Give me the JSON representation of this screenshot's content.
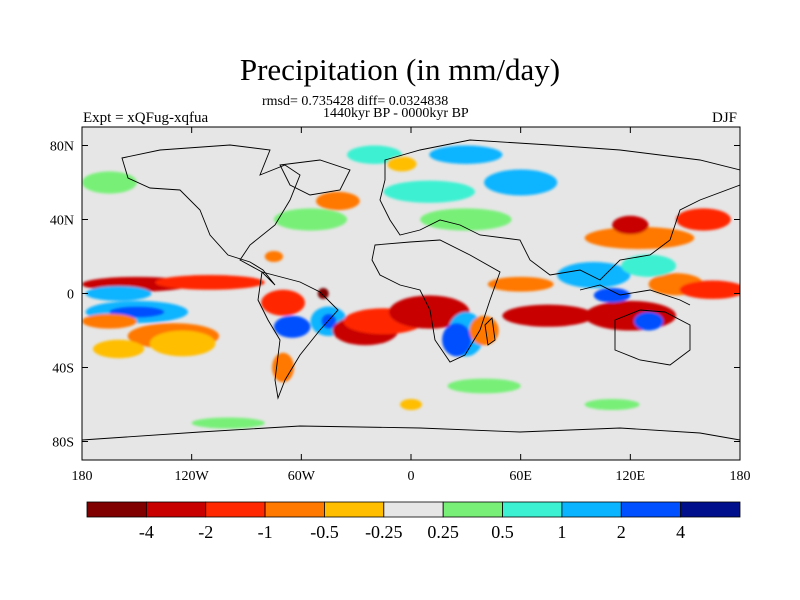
{
  "title": "Precipitation (in mm/day)",
  "stats_line": "rmsd= 0.735428 diff= 0.0324838",
  "period_line": "1440kyr BP - 0000kyr BP",
  "experiment_label": "Expt = xQFug-xqfua",
  "season_label": "DJF",
  "chart_data": {
    "type": "heatmap",
    "projection": "cylindrical-equidistant",
    "variable": "Precipitation difference",
    "units": "mm/day",
    "lon_range": [
      -180,
      180
    ],
    "lat_range": [
      -90,
      90
    ],
    "lon_ticks": [
      {
        "value": -180,
        "label": "180"
      },
      {
        "value": -120,
        "label": "120W"
      },
      {
        "value": -60,
        "label": "60W"
      },
      {
        "value": 0,
        "label": "0"
      },
      {
        "value": 60,
        "label": "60E"
      },
      {
        "value": 120,
        "label": "120E"
      },
      {
        "value": 180,
        "label": "180"
      }
    ],
    "lat_ticks": [
      {
        "value": 80,
        "label": "80N"
      },
      {
        "value": 40,
        "label": "40N"
      },
      {
        "value": 0,
        "label": "0"
      },
      {
        "value": -40,
        "label": "40S"
      },
      {
        "value": -80,
        "label": "80S"
      }
    ],
    "colorbar": {
      "colors": [
        "#800000",
        "#c80000",
        "#ff2800",
        "#ff7800",
        "#ffbe00",
        "#e6e6e6",
        "#78f078",
        "#3cf0d2",
        "#0ab4ff",
        "#0050ff",
        "#000f8c"
      ],
      "labels": [
        "-4",
        "-2",
        "-1",
        "-0.5",
        "-0.25",
        "0.25",
        "0.5",
        "1",
        "2",
        "4"
      ]
    },
    "anomaly_regions": [
      {
        "lon": -150,
        "lat": 5,
        "rx": 30,
        "ry": 4,
        "level": 1
      },
      {
        "lon": -110,
        "lat": 6,
        "rx": 30,
        "ry": 4,
        "level": 2
      },
      {
        "lon": -160,
        "lat": 0,
        "rx": 18,
        "ry": 4,
        "level": 8
      },
      {
        "lon": -150,
        "lat": -10,
        "rx": 28,
        "ry": 6,
        "level": 8
      },
      {
        "lon": -150,
        "lat": -10,
        "rx": 15,
        "ry": 3,
        "level": 9
      },
      {
        "lon": -165,
        "lat": -15,
        "rx": 15,
        "ry": 4,
        "level": 3
      },
      {
        "lon": -130,
        "lat": -23,
        "rx": 25,
        "ry": 7,
        "level": 3
      },
      {
        "lon": -125,
        "lat": -27,
        "rx": 18,
        "ry": 7,
        "level": 4
      },
      {
        "lon": -160,
        "lat": -30,
        "rx": 14,
        "ry": 5,
        "level": 4
      },
      {
        "lon": -70,
        "lat": -5,
        "rx": 12,
        "ry": 7,
        "level": 2
      },
      {
        "lon": -48,
        "lat": 0,
        "rx": 3,
        "ry": 3,
        "level": 0
      },
      {
        "lon": -45,
        "lat": -15,
        "rx": 10,
        "ry": 8,
        "level": 8
      },
      {
        "lon": -45,
        "lat": -15,
        "rx": 4,
        "ry": 4,
        "level": 9
      },
      {
        "lon": -65,
        "lat": -18,
        "rx": 10,
        "ry": 6,
        "level": 9
      },
      {
        "lon": -25,
        "lat": -20,
        "rx": 18,
        "ry": 8,
        "level": 1
      },
      {
        "lon": -15,
        "lat": -15,
        "rx": 22,
        "ry": 7,
        "level": 2
      },
      {
        "lon": 10,
        "lat": -10,
        "rx": 22,
        "ry": 9,
        "level": 1
      },
      {
        "lon": 30,
        "lat": -22,
        "rx": 10,
        "ry": 12,
        "level": 8
      },
      {
        "lon": 25,
        "lat": -25,
        "rx": 8,
        "ry": 9,
        "level": 9
      },
      {
        "lon": 40,
        "lat": -20,
        "rx": 8,
        "ry": 8,
        "level": 3
      },
      {
        "lon": 60,
        "lat": 5,
        "rx": 18,
        "ry": 4,
        "level": 3
      },
      {
        "lon": 75,
        "lat": -12,
        "rx": 25,
        "ry": 6,
        "level": 1
      },
      {
        "lon": 120,
        "lat": -12,
        "rx": 25,
        "ry": 8,
        "level": 1
      },
      {
        "lon": 130,
        "lat": -15,
        "rx": 8,
        "ry": 5,
        "level": 9
      },
      {
        "lon": 145,
        "lat": 5,
        "rx": 15,
        "ry": 6,
        "level": 3
      },
      {
        "lon": 165,
        "lat": 2,
        "rx": 18,
        "ry": 5,
        "level": 2
      },
      {
        "lon": 125,
        "lat": 30,
        "rx": 30,
        "ry": 6,
        "level": 3
      },
      {
        "lon": 120,
        "lat": 37,
        "rx": 10,
        "ry": 5,
        "level": 1
      },
      {
        "lon": 160,
        "lat": 40,
        "rx": 15,
        "ry": 6,
        "level": 2
      },
      {
        "lon": 100,
        "lat": 10,
        "rx": 20,
        "ry": 7,
        "level": 8
      },
      {
        "lon": 130,
        "lat": 15,
        "rx": 15,
        "ry": 6,
        "level": 7
      },
      {
        "lon": 110,
        "lat": -1,
        "rx": 10,
        "ry": 4,
        "level": 9
      },
      {
        "lon": -55,
        "lat": 40,
        "rx": 20,
        "ry": 6,
        "level": 6
      },
      {
        "lon": -40,
        "lat": 50,
        "rx": 12,
        "ry": 5,
        "level": 3
      },
      {
        "lon": -75,
        "lat": 20,
        "rx": 5,
        "ry": 3,
        "level": 3
      },
      {
        "lon": 30,
        "lat": 40,
        "rx": 25,
        "ry": 6,
        "level": 6
      },
      {
        "lon": 10,
        "lat": 55,
        "rx": 25,
        "ry": 6,
        "level": 7
      },
      {
        "lon": 60,
        "lat": 60,
        "rx": 20,
        "ry": 7,
        "level": 8
      },
      {
        "lon": -165,
        "lat": 60,
        "rx": 15,
        "ry": 6,
        "level": 6
      },
      {
        "lon": -20,
        "lat": 75,
        "rx": 15,
        "ry": 5,
        "level": 7
      },
      {
        "lon": 30,
        "lat": 75,
        "rx": 20,
        "ry": 5,
        "level": 8
      },
      {
        "lon": -5,
        "lat": 70,
        "rx": 8,
        "ry": 4,
        "level": 4
      },
      {
        "lon": 40,
        "lat": -50,
        "rx": 20,
        "ry": 4,
        "level": 6
      },
      {
        "lon": -100,
        "lat": -70,
        "rx": 20,
        "ry": 3,
        "level": 6
      },
      {
        "lon": 110,
        "lat": -60,
        "rx": 15,
        "ry": 3,
        "level": 6
      },
      {
        "lon": -70,
        "lat": -40,
        "rx": 6,
        "ry": 8,
        "level": 3
      },
      {
        "lon": 0,
        "lat": -60,
        "rx": 6,
        "ry": 3,
        "level": 4
      }
    ]
  }
}
